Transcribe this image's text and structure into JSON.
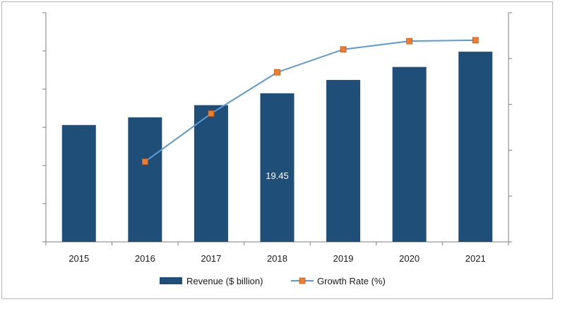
{
  "chart_data": {
    "type": "bar",
    "categories": [
      "2015",
      "2016",
      "2017",
      "2018",
      "2019",
      "2020",
      "2021"
    ],
    "series": [
      {
        "name": "Revenue ($ billion)",
        "type": "bar",
        "axis": "left",
        "color": "#1f4e79",
        "values": [
          15.3,
          16.3,
          17.9,
          19.45,
          21.2,
          22.9,
          24.9
        ]
      },
      {
        "name": "Growth Rate (%)",
        "type": "line",
        "axis": "right",
        "color": "#5b9bd5",
        "marker_color": "#ed7d31",
        "values": [
          null,
          1.75,
          2.8,
          3.7,
          4.2,
          4.38,
          4.4
        ]
      }
    ],
    "data_labels": [
      {
        "series": 0,
        "category": "2018",
        "text": "19.45"
      }
    ],
    "ylim_left": [
      0,
      30
    ],
    "ylim_right": [
      0,
      5
    ],
    "y_tick_labels_shown": false,
    "grid": false,
    "legend": "bottom",
    "title": "",
    "xlabel": "",
    "ylabel": ""
  }
}
